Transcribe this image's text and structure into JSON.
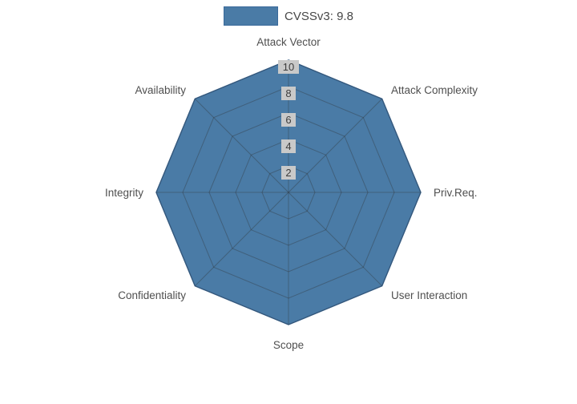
{
  "chart_data": {
    "type": "radar",
    "title": "CVSSv3: 9.8",
    "categories": [
      "Attack Vector",
      "Attack Complexity",
      "Priv.Req.",
      "User Interaction",
      "Scope",
      "Confidentiality",
      "Integrity",
      "Availability"
    ],
    "values": [
      10,
      10,
      10,
      10,
      10,
      10,
      10,
      10
    ],
    "ticks": [
      2,
      4,
      6,
      8,
      10
    ],
    "rlim": [
      0,
      10
    ],
    "grid": true,
    "legend": {
      "label": "CVSSv3: 9.8",
      "position": "top-center"
    },
    "colors": {
      "fill": "#4a7ba6",
      "edge": "#3a6a9b",
      "grid": "rgba(45,45,45,0.35)",
      "label": "#4f4f4f",
      "tick_bg": "#c9c9c9",
      "tick_text": "#3d3d3d",
      "legend_text": "#474747"
    }
  }
}
